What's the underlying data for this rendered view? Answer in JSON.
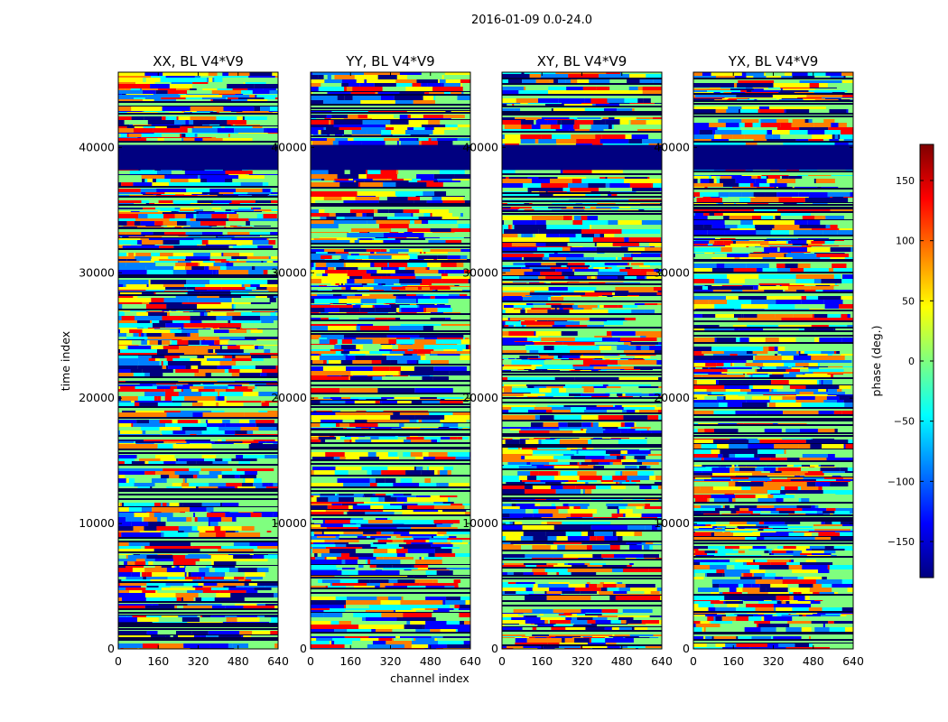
{
  "figure": {
    "suptitle": "2016-01-09 0.0-24.0",
    "xlabel": "channel index",
    "ylabel": "time index"
  },
  "colors": {
    "jet": [
      "#00007f",
      "#0000ff",
      "#007fff",
      "#00ffff",
      "#7fff7f",
      "#ffff00",
      "#ff7f00",
      "#ff0000",
      "#7f0000"
    ],
    "gap": "#000080"
  },
  "chart_data": {
    "type": "heatmap",
    "title": "2016-01-09 0.0-24.0",
    "xlabel": "channel index",
    "ylabel": "time index",
    "xlim": [
      0,
      640
    ],
    "ylim": [
      0,
      46000
    ],
    "xticks": [
      0,
      160,
      320,
      480,
      640
    ],
    "yticks": [
      0,
      10000,
      20000,
      30000,
      40000
    ],
    "panels": [
      {
        "title": "XX, BL V4*V9",
        "key": "XX"
      },
      {
        "title": "YY, BL V4*V9",
        "key": "YY"
      },
      {
        "title": "XY, BL V4*V9",
        "key": "XY"
      },
      {
        "title": "YX, BL V4*V9",
        "key": "YX"
      }
    ],
    "flagged_time_range": [
      38200,
      40200
    ],
    "colorbar": {
      "label": "phase (deg.)",
      "range": [
        -180,
        180
      ],
      "ticks": [
        150,
        100,
        50,
        0,
        -50,
        -100,
        -150
      ],
      "tick_labels": [
        "150",
        "100",
        "50",
        "0",
        "−50",
        "−100",
        "−150"
      ],
      "colormap": "jet"
    }
  }
}
